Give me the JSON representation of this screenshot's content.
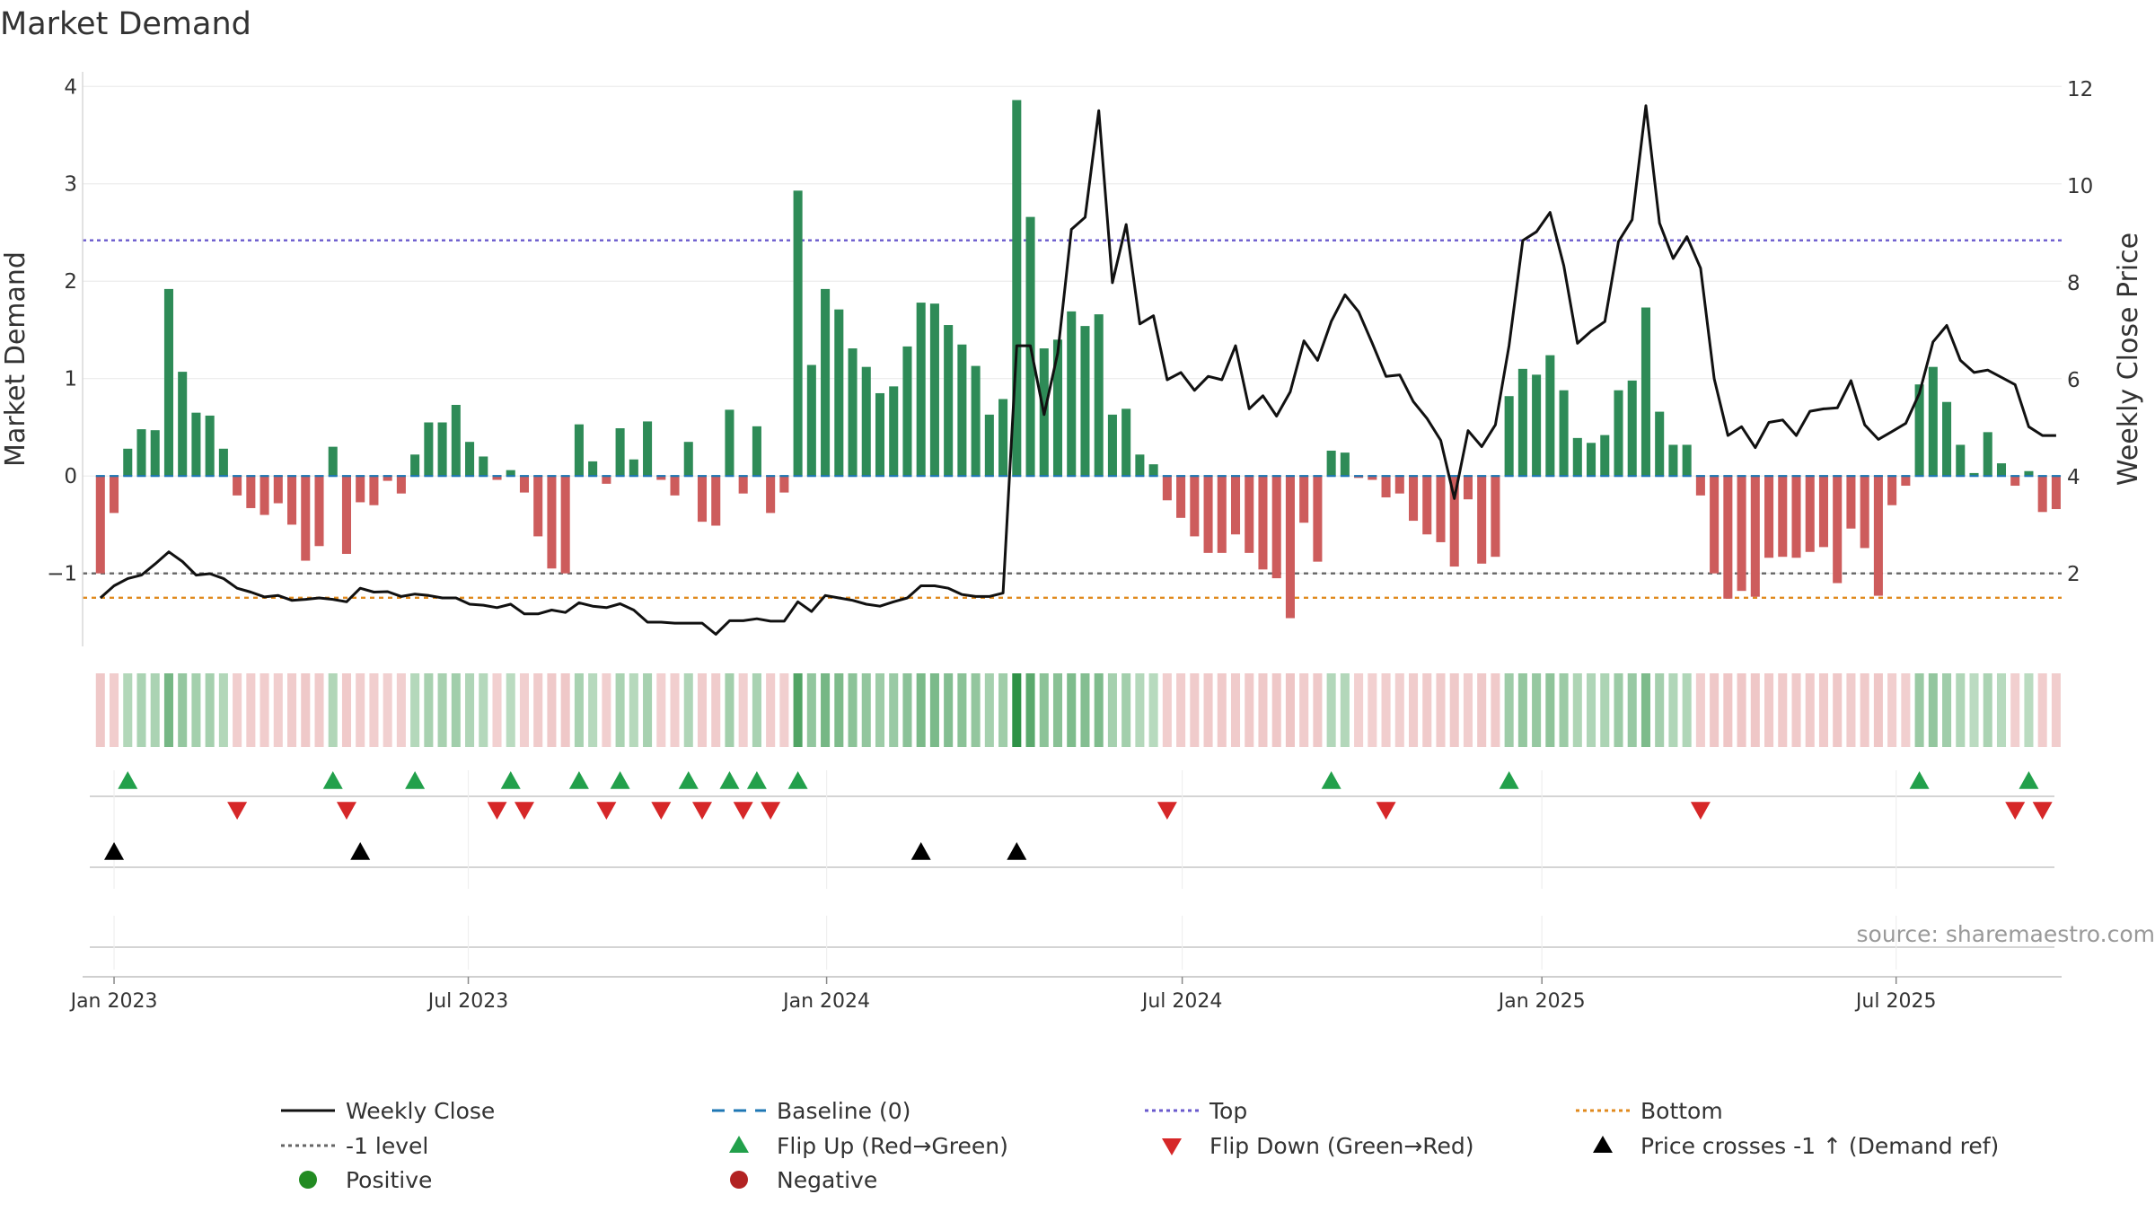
{
  "chart_data": {
    "type": "bar",
    "title": "Market Demand",
    "ylabel": "Market Demand",
    "y2label": "Weekly Close Price",
    "ylim": [
      -1.75,
      4.15
    ],
    "y2lim": [
      0.5,
      12.35
    ],
    "yticks": [
      4,
      3,
      2,
      1,
      0,
      -1
    ],
    "yticklabels": [
      "4",
      "3",
      "2",
      "1",
      "0",
      "−1"
    ],
    "y2ticks": [
      12,
      10,
      8,
      6,
      4,
      2
    ],
    "y2ticklabels": [
      "12",
      "10",
      "8",
      "6",
      "4",
      "2"
    ],
    "x_range_weeks": [
      -1.3,
      143.4
    ],
    "xticks": [
      {
        "label": "Jan 2023",
        "week": 1.0
      },
      {
        "label": "Jul 2023",
        "week": 26.9
      },
      {
        "label": "Jan 2024",
        "week": 53.1
      },
      {
        "label": "Jul 2024",
        "week": 79.1
      },
      {
        "label": "Jan 2025",
        "week": 105.4
      },
      {
        "label": "Jul 2025",
        "week": 131.3
      }
    ],
    "top_level": 2.42,
    "bottom_level": -1.25,
    "minus_one_level": -1,
    "source": "source: sharemaestro.com",
    "colors": {
      "pos_bar": "#2e8b57",
      "neg_bar": "#cd5c5c",
      "top": "#6a5acd",
      "bottom": "#e08a1e",
      "baseline": "#1f77b4",
      "minus_one": "#666666",
      "price": "#111111",
      "flip_up": "#22a04b",
      "flip_down": "#d62728",
      "cross": "#000000"
    },
    "series": [
      {
        "name": "Market Demand",
        "values": [
          -1.0,
          -0.38,
          0.28,
          0.48,
          0.47,
          1.92,
          1.07,
          0.65,
          0.62,
          0.28,
          -0.2,
          -0.33,
          -0.4,
          -0.28,
          -0.5,
          -0.87,
          -0.72,
          0.3,
          -0.8,
          -0.27,
          -0.3,
          -0.05,
          -0.18,
          0.22,
          0.55,
          0.55,
          0.73,
          0.35,
          0.2,
          -0.04,
          0.06,
          -0.17,
          -0.62,
          -0.95,
          -1.0,
          0.53,
          0.15,
          -0.08,
          0.49,
          0.17,
          0.56,
          -0.04,
          -0.2,
          0.35,
          -0.47,
          -0.51,
          0.68,
          -0.18,
          0.51,
          -0.38,
          -0.17,
          2.93,
          1.14,
          1.92,
          1.71,
          1.31,
          1.12,
          0.85,
          0.92,
          1.33,
          1.78,
          1.77,
          1.55,
          1.35,
          1.13,
          0.63,
          0.79,
          3.86,
          2.66,
          1.31,
          1.4,
          1.69,
          1.54,
          1.66,
          0.63,
          0.69,
          0.22,
          0.12,
          -0.25,
          -0.43,
          -0.62,
          -0.79,
          -0.79,
          -0.6,
          -0.79,
          -0.96,
          -1.05,
          -1.46,
          -0.48,
          -0.88,
          0.26,
          0.24,
          -0.02,
          -0.04,
          -0.22,
          -0.18,
          -0.46,
          -0.6,
          -0.68,
          -0.93,
          -0.24,
          -0.9,
          -0.83,
          0.82,
          1.1,
          1.04,
          1.24,
          0.88,
          0.39,
          0.34,
          0.42,
          0.88,
          0.98,
          1.73,
          0.66,
          0.32,
          0.32,
          -0.2,
          -1.0,
          -1.26,
          -1.18,
          -1.24,
          -0.84,
          -0.83,
          -0.84,
          -0.78,
          -0.73,
          -1.1,
          -0.54,
          -0.74,
          -1.23,
          -0.3,
          -0.1,
          0.94,
          1.12,
          0.76,
          0.32,
          0.03,
          0.45,
          0.13,
          -0.1,
          0.05,
          -0.37,
          -0.34
        ]
      },
      {
        "name": "Weekly Close",
        "axis": "right",
        "values": [
          1.5,
          1.75,
          1.9,
          1.97,
          2.2,
          2.45,
          2.25,
          1.97,
          2.0,
          1.9,
          1.7,
          1.62,
          1.52,
          1.55,
          1.45,
          1.47,
          1.5,
          1.47,
          1.42,
          1.7,
          1.62,
          1.63,
          1.53,
          1.58,
          1.55,
          1.5,
          1.5,
          1.37,
          1.35,
          1.3,
          1.37,
          1.17,
          1.17,
          1.25,
          1.2,
          1.4,
          1.33,
          1.3,
          1.38,
          1.25,
          1.0,
          1.0,
          0.98,
          0.98,
          0.98,
          0.75,
          1.03,
          1.03,
          1.07,
          1.02,
          1.02,
          1.42,
          1.22,
          1.55,
          1.5,
          1.45,
          1.37,
          1.33,
          1.42,
          1.5,
          1.75,
          1.75,
          1.7,
          1.57,
          1.53,
          1.53,
          1.6,
          6.7,
          6.7,
          5.28,
          6.55,
          9.1,
          9.35,
          11.55,
          8.0,
          9.2,
          7.15,
          7.32,
          6.0,
          6.15,
          5.78,
          6.07,
          6.0,
          6.7,
          5.4,
          5.67,
          5.25,
          5.75,
          6.8,
          6.4,
          7.2,
          7.75,
          7.4,
          6.75,
          6.07,
          6.1,
          5.55,
          5.2,
          4.75,
          3.55,
          4.95,
          4.62,
          5.07,
          6.7,
          8.87,
          9.05,
          9.45,
          8.35,
          6.75,
          7.0,
          7.2,
          8.85,
          9.3,
          11.65,
          9.23,
          8.5,
          8.95,
          8.3,
          6.02,
          4.85,
          5.03,
          4.6,
          5.12,
          5.17,
          4.85,
          5.35,
          5.4,
          5.42,
          5.98,
          5.07,
          4.77,
          4.93,
          5.1,
          5.72,
          6.78,
          7.12,
          6.4,
          6.15,
          6.2,
          6.05,
          5.9,
          5.03,
          4.85,
          4.85
        ]
      }
    ],
    "markers": {
      "flip_up": [
        2,
        17,
        23,
        30,
        35,
        38,
        43,
        46,
        48,
        51,
        90,
        103,
        133,
        141
      ],
      "flip_down": [
        10,
        18,
        29,
        31,
        37,
        41,
        44,
        47,
        49,
        78,
        94,
        117,
        140,
        142
      ],
      "price_cross": [
        1,
        19,
        60,
        67
      ]
    },
    "legend": [
      {
        "key": "weekly-close",
        "label": "Weekly Close",
        "symbol": "line-solid",
        "color": "#111111"
      },
      {
        "key": "baseline",
        "label": "Baseline (0)",
        "symbol": "line-dash",
        "color": "#1f77b4"
      },
      {
        "key": "top",
        "label": "Top",
        "symbol": "line-dot",
        "color": "#6a5acd"
      },
      {
        "key": "bottom",
        "label": "Bottom",
        "symbol": "line-dot",
        "color": "#e08a1e"
      },
      {
        "key": "minus-one-level",
        "label": "-1 level",
        "symbol": "line-dot",
        "color": "#666666"
      },
      {
        "key": "flip-up",
        "label": "Flip Up (Red→Green)",
        "symbol": "triangle-up",
        "color": "#22a04b"
      },
      {
        "key": "flip-down",
        "label": "Flip Down (Green→Red)",
        "symbol": "triangle-down",
        "color": "#d62728"
      },
      {
        "key": "price-cross",
        "label": "Price crosses -1 ↑ (Demand ref)",
        "symbol": "triangle-up",
        "color": "#000000"
      },
      {
        "key": "positive",
        "label": "Positive",
        "symbol": "circle",
        "color": "#228b22"
      },
      {
        "key": "negative",
        "label": "Negative",
        "symbol": "circle",
        "color": "#b22222"
      }
    ]
  }
}
